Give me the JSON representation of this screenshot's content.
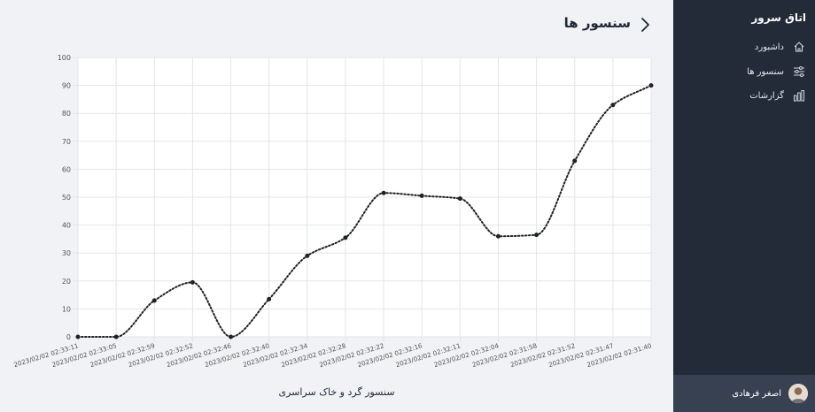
{
  "header": {
    "title": "سنسور ها"
  },
  "sidebar": {
    "brand": "اتاق سرور",
    "items": [
      {
        "label": "داشبورد",
        "icon": "home-icon"
      },
      {
        "label": "سنسور ها",
        "icon": "sliders-icon"
      },
      {
        "label": "گزارشات",
        "icon": "bar-chart-icon"
      }
    ],
    "user": {
      "name": "اصغر فرهادی",
      "avatar": "avatar"
    }
  },
  "chart_data": {
    "type": "line",
    "title": "",
    "xlabel": "سنسور گرد و خاک سراسری",
    "ylabel": "",
    "ylim": [
      0,
      100
    ],
    "yticks": [
      0,
      10,
      20,
      30,
      40,
      50,
      60,
      70,
      80,
      90,
      100
    ],
    "grid": true,
    "categories": [
      "2023/02/02 02:33:11",
      "2023/02/02 02:33:05",
      "2023/02/02 02:32:59",
      "2023/02/02 02:32:52",
      "2023/02/02 02:32:46",
      "2023/02/02 02:32:40",
      "2023/02/02 02:32:34",
      "2023/02/02 02:32:28",
      "2023/02/02 02:32:22",
      "2023/02/02 02:32:16",
      "2023/02/02 02:32:11",
      "2023/02/02 02:32:04",
      "2023/02/02 02:31:58",
      "2023/02/02 02:31:52",
      "2023/02/02 02:31:47",
      "2023/02/02 02:31:40"
    ],
    "series": [
      {
        "values": [
          0,
          0,
          13,
          19.5,
          0,
          13.5,
          29,
          35.5,
          51.5,
          50.5,
          49.5,
          36,
          36.5,
          63,
          83,
          90
        ],
        "color": "#222222",
        "style": "dotted"
      }
    ]
  }
}
